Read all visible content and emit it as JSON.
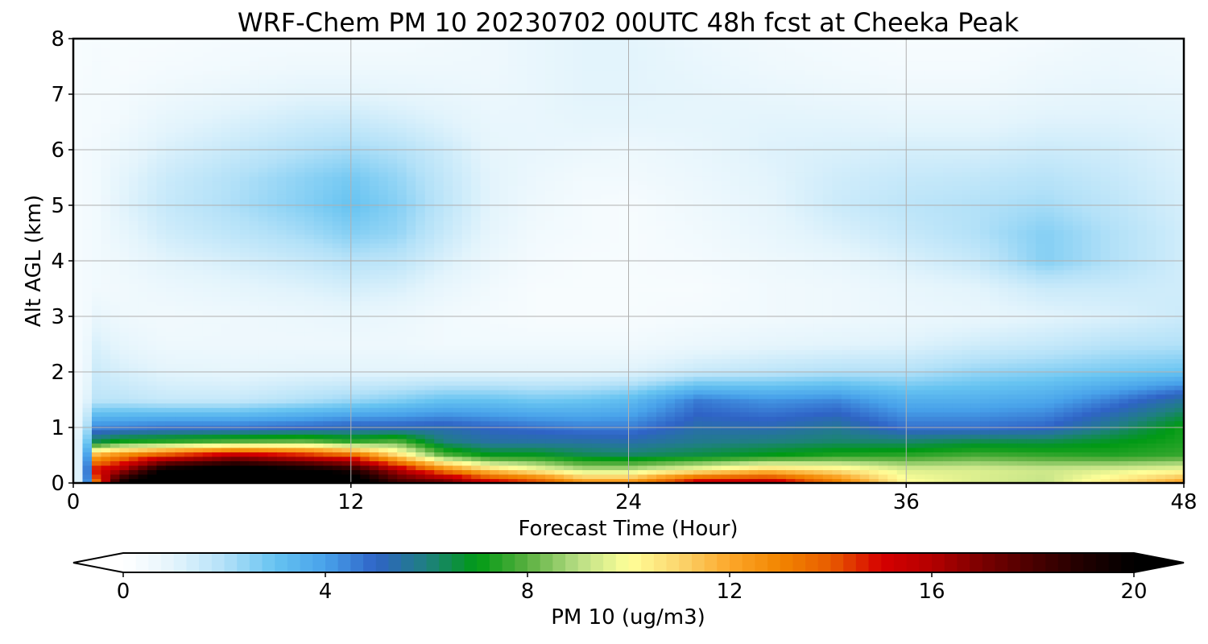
{
  "chart_data": {
    "type": "heatmap",
    "title": "WRF-Chem PM 10  20230702 00UTC 48h fcst at Cheeka Peak",
    "xlabel": "Forecast Time (Hour)",
    "ylabel": "Alt AGL (km)",
    "xlim": [
      0,
      48
    ],
    "ylim": [
      0,
      8
    ],
    "xticks": [
      "0",
      "12",
      "24",
      "36",
      "48"
    ],
    "yticks": [
      "0",
      "1",
      "2",
      "3",
      "4",
      "5",
      "6",
      "7",
      "8"
    ],
    "grid": true,
    "colorbar": {
      "label": "PM 10  (ug/m3)",
      "range": [
        0,
        20
      ],
      "ticks": [
        "0",
        "4",
        "8",
        "12",
        "16",
        "20"
      ],
      "extend": "both",
      "colors": [
        {
          "v": 0,
          "c": "#ffffff"
        },
        {
          "v": 1,
          "c": "#e3f4fc"
        },
        {
          "v": 2,
          "c": "#b3e1f8"
        },
        {
          "v": 3,
          "c": "#66c3f1"
        },
        {
          "v": 4,
          "c": "#48a2ea"
        },
        {
          "v": 5,
          "c": "#2f63c6"
        },
        {
          "v": 6,
          "c": "#1f8080"
        },
        {
          "v": 7,
          "c": "#009a14"
        },
        {
          "v": 8,
          "c": "#5ab040"
        },
        {
          "v": 9,
          "c": "#b8de84"
        },
        {
          "v": 10,
          "c": "#ffff99"
        },
        {
          "v": 11,
          "c": "#fbd66e"
        },
        {
          "v": 12,
          "c": "#fca72a"
        },
        {
          "v": 13,
          "c": "#f28500"
        },
        {
          "v": 14,
          "c": "#e85c00"
        },
        {
          "v": 15,
          "c": "#d60000"
        },
        {
          "v": 16,
          "c": "#b40000"
        },
        {
          "v": 17,
          "c": "#7a0000"
        },
        {
          "v": 18,
          "c": "#4a0000"
        },
        {
          "v": 19,
          "c": "#200000"
        },
        {
          "v": 20,
          "c": "#000000"
        }
      ]
    },
    "profile_levels_km": [
      0,
      0.05,
      0.25,
      0.5,
      0.75,
      1,
      1.5,
      2,
      2.5,
      3,
      3.5,
      4,
      4.5,
      5,
      5.5,
      6,
      6.5,
      7,
      7.5,
      8
    ],
    "profiles": [
      {
        "t": 0,
        "v": [
          0.5,
          0.5,
          0.5,
          0.5,
          0.5,
          0.4,
          0.3,
          0.3,
          0.3,
          0.3,
          0.3,
          0.3,
          0.3,
          0.3,
          0.3,
          0.3,
          0.3,
          0.3,
          0.3,
          0.3
        ]
      },
      {
        "t": 0.5,
        "v": [
          2,
          2,
          2,
          2,
          2,
          1.6,
          0.9,
          0.6,
          0.5,
          0.4,
          0.4,
          0.4,
          0.4,
          0.4,
          0.4,
          0.4,
          0.4,
          0.4,
          0.3,
          0.3
        ]
      },
      {
        "t": 1,
        "v": [
          12,
          14,
          15,
          12,
          6.5,
          4.5,
          1.8,
          1.5,
          1.2,
          0.8,
          0.5,
          0.5,
          0.5,
          0.5,
          0.5,
          0.5,
          0.4,
          0.4,
          0.4,
          0.3
        ]
      },
      {
        "t": 2,
        "v": [
          19,
          19,
          16,
          13,
          7.2,
          4.6,
          1.8,
          1.3,
          0.9,
          0.6,
          0.5,
          0.6,
          0.8,
          1.0,
          0.9,
          0.7,
          0.5,
          0.4,
          0.3,
          0.3
        ]
      },
      {
        "t": 4,
        "v": [
          22,
          22,
          20,
          14.5,
          7.5,
          4.8,
          1.6,
          1.0,
          0.6,
          0.5,
          0.7,
          1.0,
          1.4,
          1.6,
          1.5,
          1.2,
          0.9,
          0.6,
          0.4,
          0.3
        ]
      },
      {
        "t": 7,
        "v": [
          23,
          23,
          21,
          16,
          8,
          4.8,
          1.6,
          0.9,
          0.6,
          0.6,
          0.9,
          1.3,
          1.8,
          2.1,
          2.0,
          1.6,
          1.2,
          0.8,
          0.5,
          0.4
        ]
      },
      {
        "t": 10,
        "v": [
          22,
          22,
          20,
          15,
          8.2,
          5.0,
          2.0,
          1.0,
          0.6,
          0.7,
          1.1,
          1.6,
          2.2,
          2.6,
          2.5,
          2.0,
          1.5,
          1.0,
          0.6,
          0.4
        ]
      },
      {
        "t": 12,
        "v": [
          21,
          21,
          19,
          14,
          7.5,
          5.2,
          2.3,
          1.0,
          0.6,
          0.8,
          1.3,
          1.9,
          2.6,
          3.0,
          2.8,
          2.2,
          1.6,
          1.0,
          0.6,
          0.4
        ]
      },
      {
        "t": 14,
        "v": [
          18,
          18,
          16,
          11,
          8,
          5.2,
          2.6,
          1.0,
          0.6,
          0.7,
          1.2,
          1.8,
          2.4,
          2.6,
          2.4,
          2.0,
          1.4,
          0.9,
          0.6,
          0.4
        ]
      },
      {
        "t": 16,
        "v": [
          17,
          17,
          13,
          8,
          6,
          5.3,
          3.0,
          1.0,
          0.5,
          0.5,
          0.8,
          1.2,
          1.6,
          1.8,
          1.7,
          1.5,
          1.1,
          0.8,
          0.6,
          0.5
        ]
      },
      {
        "t": 18,
        "v": [
          15,
          15,
          11,
          7,
          5.5,
          5.0,
          3.0,
          1.0,
          0.5,
          0.4,
          0.5,
          0.7,
          0.9,
          1.0,
          1.0,
          0.9,
          0.8,
          0.7,
          0.6,
          0.6
        ]
      },
      {
        "t": 20,
        "v": [
          14,
          14,
          10,
          7,
          5.5,
          4.8,
          2.8,
          1.0,
          0.5,
          0.3,
          0.3,
          0.4,
          0.5,
          0.6,
          0.7,
          0.8,
          0.8,
          0.8,
          0.8,
          0.8
        ]
      },
      {
        "t": 22,
        "v": [
          13,
          12,
          9,
          6.5,
          5.5,
          4.6,
          2.9,
          1.0,
          0.5,
          0.3,
          0.3,
          0.3,
          0.4,
          0.4,
          0.5,
          0.7,
          0.9,
          1.0,
          1.0,
          1.0
        ]
      },
      {
        "t": 24,
        "v": [
          13,
          12,
          9,
          6.3,
          5.4,
          4.6,
          3.2,
          1.1,
          0.5,
          0.3,
          0.3,
          0.3,
          0.3,
          0.3,
          0.5,
          0.6,
          0.9,
          1.0,
          1.0,
          1.0
        ]
      },
      {
        "t": 27,
        "v": [
          15,
          15,
          10,
          6.6,
          5.8,
          5.4,
          4.6,
          1.6,
          0.7,
          0.4,
          0.3,
          0.4,
          0.5,
          0.6,
          0.7,
          0.8,
          0.9,
          0.9,
          0.8,
          0.7
        ]
      },
      {
        "t": 30,
        "v": [
          15.5,
          15.5,
          11,
          7,
          6,
          5.3,
          4.2,
          1.8,
          0.9,
          0.5,
          0.5,
          0.6,
          0.8,
          0.9,
          1.0,
          1.1,
          1.0,
          0.8,
          0.6,
          0.5
        ]
      },
      {
        "t": 33,
        "v": [
          13,
          13,
          10.5,
          7.4,
          6.2,
          5.7,
          4.4,
          2.0,
          1.0,
          0.6,
          0.6,
          0.8,
          1.2,
          1.5,
          1.4,
          1.2,
          1.0,
          0.7,
          0.5,
          0.4
        ]
      },
      {
        "t": 36,
        "v": [
          10,
          10,
          9.5,
          7.5,
          6.2,
          4.8,
          3.6,
          2.0,
          1.1,
          0.7,
          0.8,
          1.2,
          1.6,
          1.8,
          1.6,
          1.3,
          0.9,
          0.6,
          0.4,
          0.3
        ]
      },
      {
        "t": 39,
        "v": [
          9.5,
          9.5,
          9.5,
          7.8,
          6.5,
          4.8,
          3.6,
          2.4,
          1.4,
          0.8,
          1.0,
          1.6,
          2.0,
          2.0,
          1.7,
          1.3,
          0.9,
          0.6,
          0.4,
          0.3
        ]
      },
      {
        "t": 42,
        "v": [
          9.2,
          9.2,
          9.3,
          7.6,
          6.5,
          5.0,
          3.8,
          2.6,
          1.6,
          1.0,
          1.5,
          2.6,
          2.6,
          2.2,
          1.9,
          1.5,
          1.1,
          0.8,
          0.6,
          0.4
        ]
      },
      {
        "t": 45,
        "v": [
          10.5,
          10.5,
          9.5,
          7.4,
          6.9,
          6.0,
          4.6,
          2.8,
          1.9,
          1.2,
          1.5,
          2.0,
          2.0,
          1.8,
          1.6,
          1.4,
          1.1,
          0.9,
          0.7,
          0.6
        ]
      },
      {
        "t": 48,
        "v": [
          12,
          12,
          9.8,
          7.6,
          7.3,
          7.2,
          5.6,
          3.0,
          2.0,
          1.5,
          1.4,
          1.4,
          1.4,
          1.3,
          1.2,
          1.1,
          1.0,
          0.8,
          0.6,
          0.5
        ]
      }
    ]
  }
}
